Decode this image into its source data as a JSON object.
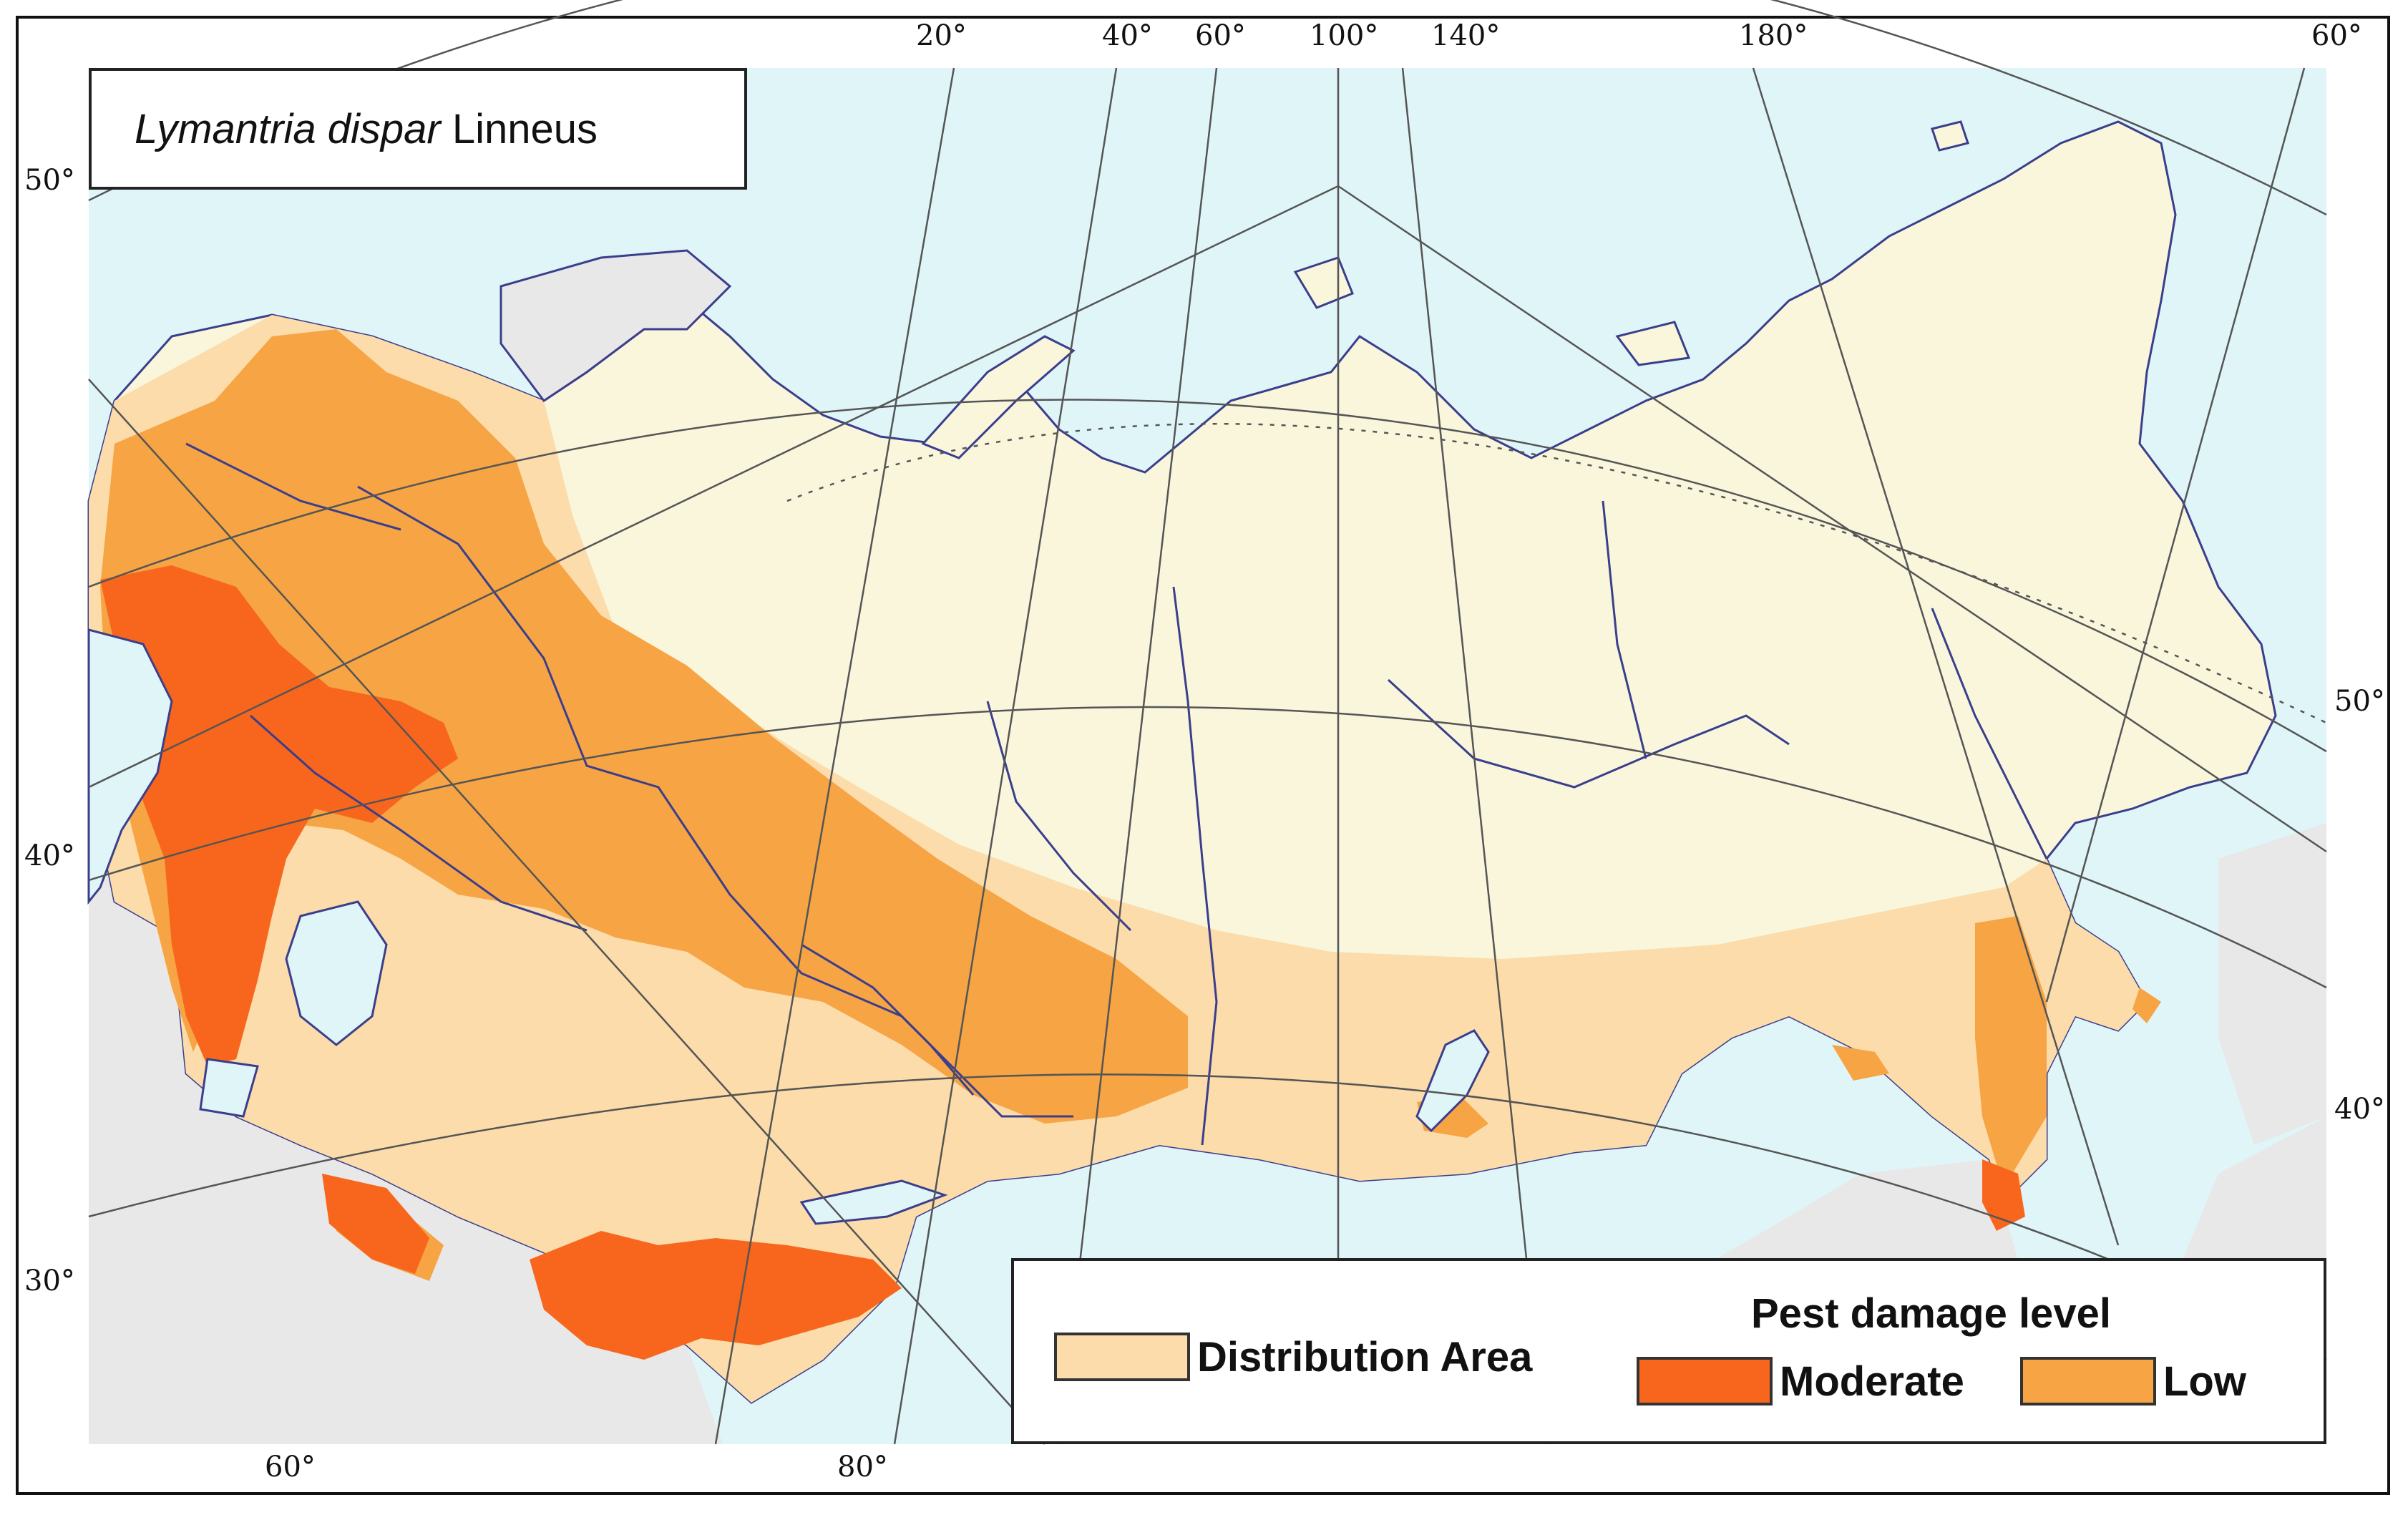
{
  "map": {
    "title_species": "Lymantria dispar",
    "title_author": "Linneus",
    "top_longitudes": [
      "20°",
      "40°",
      "60°",
      "100°",
      "140°",
      "180°",
      "60°"
    ],
    "bottom_longitudes": [
      "60°",
      "80°"
    ],
    "left_latitudes": [
      "50°",
      "40°",
      "30°"
    ],
    "right_latitudes": [
      "50°",
      "40°"
    ]
  },
  "legend": {
    "heading": "Pest damage level",
    "items": [
      {
        "label": "Distribution Area",
        "color": "#fbdcaa"
      },
      {
        "label": "Moderate",
        "color": "#f7661c"
      },
      {
        "label": "Low",
        "color": "#f6a444"
      }
    ]
  },
  "colors": {
    "sea": "#e0f5f8",
    "land_outside": "#e8e8e8",
    "land_inside": "#f9f6dc",
    "border_lines": "#3b3e8c",
    "graticule": "#555555"
  }
}
